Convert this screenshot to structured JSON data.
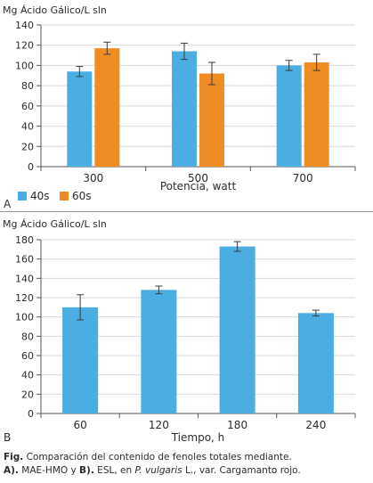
{
  "chart_data": [
    {
      "type": "bar",
      "panel_label": "A",
      "ylabel": "Mg Ácido Gálico/L sln",
      "xlabel": "Potencia, watt",
      "categories": [
        "300",
        "500",
        "700"
      ],
      "series": [
        {
          "name": "40s",
          "color": "#4baee3",
          "values": [
            94,
            114,
            100
          ],
          "errors": [
            5,
            8,
            5
          ]
        },
        {
          "name": "60s",
          "color": "#f08c24",
          "values": [
            117,
            92,
            103
          ],
          "errors": [
            6,
            11,
            8
          ]
        }
      ],
      "ylim": [
        0,
        140
      ],
      "yticks": [
        0,
        20,
        40,
        60,
        80,
        100,
        120,
        140
      ],
      "grid": true,
      "legend": "bottom-left"
    },
    {
      "type": "bar",
      "panel_label": "B",
      "ylabel": "Mg Ácido Gálico/L sln",
      "xlabel": "Tiempo, h",
      "categories": [
        "60",
        "120",
        "180",
        "240"
      ],
      "series": [
        {
          "name": "",
          "color": "#4baee3",
          "values": [
            110,
            128,
            173,
            104
          ],
          "errors": [
            13,
            4,
            5,
            3
          ]
        }
      ],
      "ylim": [
        0,
        180
      ],
      "yticks": [
        0,
        20,
        40,
        60,
        80,
        100,
        120,
        140,
        160,
        180
      ],
      "grid": true
    }
  ],
  "caption": {
    "fig_label": "Fig.",
    "line1_text": " Comparación del contenido de fenoles totales mediante.",
    "a_label": "A).",
    "line2_a": " MAE-HMO y ",
    "b_label": "B).",
    "line2_b": " ESL, en ",
    "species": "P. vulgaris",
    "line2_c": " L., var. Cargamanto rojo."
  }
}
